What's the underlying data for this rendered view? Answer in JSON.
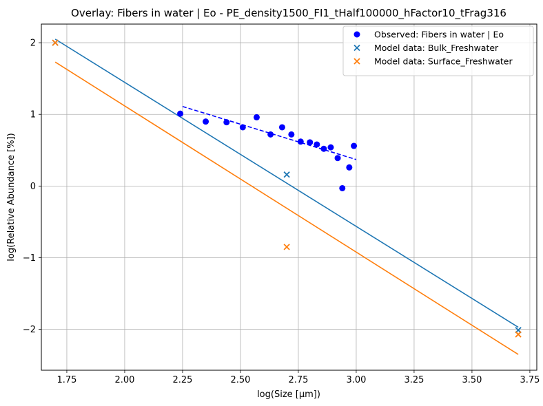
{
  "chart_data": {
    "type": "scatter",
    "title": "Overlay: Fibers in water | Eo - PE_density1500_FI1_tHalf100000_hFactor10_tFrag316",
    "xlabel": "log(Size [µm])",
    "ylabel": "log(Relative Abundance [%])",
    "xlim": [
      1.64,
      3.78
    ],
    "ylim": [
      -2.57,
      2.26
    ],
    "xticks": [
      1.75,
      2.0,
      2.25,
      2.5,
      2.75,
      3.0,
      3.25,
      3.5,
      3.75
    ],
    "xtick_labels": [
      "1.75",
      "2.00",
      "2.25",
      "2.50",
      "2.75",
      "3.00",
      "3.25",
      "3.50",
      "3.75"
    ],
    "yticks": [
      -2,
      -1,
      0,
      1,
      2
    ],
    "ytick_labels": [
      "−2",
      "−1",
      "0",
      "1",
      "2"
    ],
    "grid": true,
    "legend_position": "top-right",
    "series": [
      {
        "name": "Observed: Fibers in water | Eo",
        "kind": "scatter",
        "marker": "circle",
        "color": "#0000ff",
        "x": [
          2.24,
          2.35,
          2.44,
          2.51,
          2.57,
          2.63,
          2.68,
          2.72,
          2.76,
          2.8,
          2.83,
          2.86,
          2.89,
          2.92,
          2.94,
          2.97,
          2.99
        ],
        "y": [
          1.01,
          0.9,
          0.89,
          0.82,
          0.96,
          0.72,
          0.82,
          0.72,
          0.62,
          0.61,
          0.58,
          0.52,
          0.54,
          0.39,
          -0.03,
          0.26,
          0.56
        ]
      },
      {
        "name": "Model data: Bulk_Freshwater",
        "kind": "scatter",
        "marker": "x",
        "color": "#1f77b4",
        "x": [
          1.7,
          2.7,
          3.7
        ],
        "y": [
          2.0,
          0.16,
          -2.01
        ]
      },
      {
        "name": "Model data: Surface_Freshwater",
        "kind": "scatter",
        "marker": "x",
        "color": "#ff7f0e",
        "x": [
          1.7,
          2.7,
          3.7
        ],
        "y": [
          2.0,
          -0.85,
          -2.07
        ]
      }
    ],
    "lines": [
      {
        "style": "dashed",
        "color": "#0000ff",
        "x": [
          2.25,
          3.0
        ],
        "y": [
          1.11,
          0.37
        ]
      },
      {
        "style": "solid",
        "color": "#1f77b4",
        "x": [
          1.7,
          3.7
        ],
        "y": [
          2.05,
          -1.97
        ]
      },
      {
        "style": "solid",
        "color": "#ff7f0e",
        "x": [
          1.7,
          3.7
        ],
        "y": [
          1.73,
          -2.35
        ]
      }
    ]
  }
}
